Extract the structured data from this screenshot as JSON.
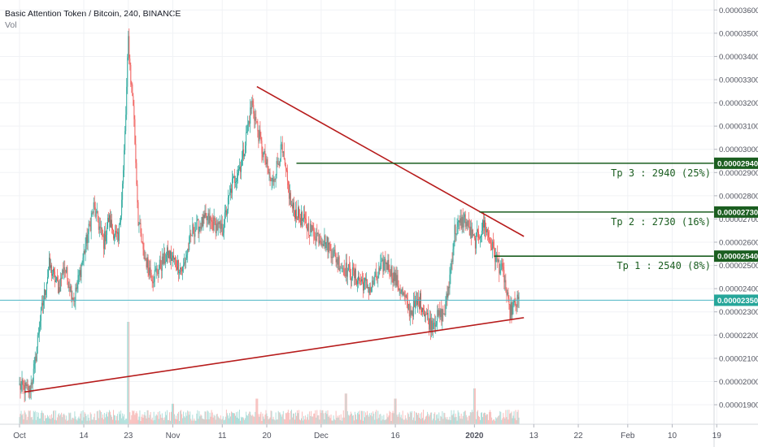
{
  "header": {
    "symbol_line": "Basic Attention Token / Bitcoin, 240, BINANCE",
    "volume_label": "Vol"
  },
  "chart_data": {
    "type": "candlestick",
    "y_axis": {
      "ticks": [
        "0.00001900",
        "0.00002000",
        "0.00002100",
        "0.00002200",
        "0.00002300",
        "0.00002400",
        "0.00002500",
        "0.00002600",
        "0.00002700",
        "0.00002800",
        "0.00002900",
        "0.00003000",
        "0.00003100",
        "0.00003200",
        "0.00003300",
        "0.00003400",
        "0.00003500",
        "0.00003600"
      ],
      "tick_values": [
        1900,
        2000,
        2100,
        2200,
        2300,
        2400,
        2500,
        2600,
        2700,
        2800,
        2900,
        3000,
        3100,
        3200,
        3300,
        3400,
        3500,
        3600
      ],
      "position": "right"
    },
    "x_axis": {
      "labels": [
        "Oct",
        "14",
        "23",
        "Nov",
        "11",
        "20",
        "Dec",
        "16",
        "2020",
        "13",
        "22",
        "Feb",
        "10",
        "19"
      ],
      "bold_labels": [
        "2020"
      ]
    },
    "price_path": [
      [
        "Oct 1",
        1980
      ],
      [
        "Oct 3",
        1960
      ],
      [
        "Oct 4",
        2050
      ],
      [
        "Oct 5",
        2250
      ],
      [
        "Oct 7",
        2500
      ],
      [
        "Oct 9",
        2400
      ],
      [
        "Oct 10",
        2500
      ],
      [
        "Oct 12",
        2350
      ],
      [
        "Oct 14",
        2550
      ],
      [
        "Oct 16",
        2750
      ],
      [
        "Oct 18",
        2600
      ],
      [
        "Oct 19",
        2700
      ],
      [
        "Oct 21",
        2600
      ],
      [
        "Oct 22",
        2900
      ],
      [
        "Oct 23",
        3400
      ],
      [
        "Oct 24",
        3200
      ],
      [
        "Oct 25",
        2700
      ],
      [
        "Oct 26",
        2550
      ],
      [
        "Oct 28",
        2450
      ],
      [
        "Oct 31",
        2550
      ],
      [
        "Nov 3",
        2480
      ],
      [
        "Nov 5",
        2650
      ],
      [
        "Nov 8",
        2700
      ],
      [
        "Nov 11",
        2650
      ],
      [
        "Nov 13",
        2850
      ],
      [
        "Nov 15",
        2950
      ],
      [
        "Nov 17",
        3200
      ],
      [
        "Nov 18",
        3100
      ],
      [
        "Nov 19",
        3000
      ],
      [
        "Nov 21",
        2850
      ],
      [
        "Nov 23",
        3000
      ],
      [
        "Nov 25",
        2750
      ],
      [
        "Nov 27",
        2700
      ],
      [
        "Nov 29",
        2650
      ],
      [
        "Dec 2",
        2600
      ],
      [
        "Dec 5",
        2500
      ],
      [
        "Dec 8",
        2450
      ],
      [
        "Dec 11",
        2400
      ],
      [
        "Dec 14",
        2520
      ],
      [
        "Dec 17",
        2400
      ],
      [
        "Dec 19",
        2300
      ],
      [
        "Dec 21",
        2350
      ],
      [
        "Dec 23",
        2250
      ],
      [
        "Dec 26",
        2300
      ],
      [
        "Dec 27",
        2450
      ],
      [
        "Dec 28",
        2650
      ],
      [
        "Dec 30",
        2700
      ],
      [
        "Jan 1",
        2600
      ],
      [
        "Jan 3",
        2680
      ],
      [
        "Jan 5",
        2550
      ],
      [
        "Jan 7",
        2450
      ],
      [
        "Jan 8",
        2300
      ],
      [
        "Jan 10",
        2350
      ]
    ],
    "volume_spikes": [
      [
        "Oct 23",
        1.0
      ],
      [
        "Nov 1",
        0.2
      ],
      [
        "Nov 18",
        0.25
      ],
      [
        "Dec 6",
        0.3
      ],
      [
        "Dec 16",
        0.25
      ],
      [
        "Jan 1",
        0.35
      ]
    ],
    "trendlines": [
      {
        "name": "descending-resistance",
        "from": [
          "Nov 18",
          3270
        ],
        "to": [
          "Jan 11",
          2625
        ],
        "color": "#b71c1c"
      },
      {
        "name": "ascending-support",
        "from": [
          "Oct 2",
          1955
        ],
        "to": [
          "Jan 11",
          2275
        ],
        "color": "#b71c1c"
      }
    ],
    "targets": [
      {
        "label": "Tp 3 : 2940 (25%)",
        "value": 2940,
        "tag": "0.00002940",
        "start": "Nov 26"
      },
      {
        "label": "Tp 2 : 2730 (16%)",
        "value": 2730,
        "tag": "0.00002730",
        "start": "Jan 2"
      },
      {
        "label": "Tp 1 : 2540 (8%)",
        "value": 2540,
        "tag": "0.00002540",
        "start": "Jan 5"
      }
    ],
    "current_price": {
      "value": 2350,
      "tag": "0.00002350"
    },
    "colors": {
      "up": "#26a69a",
      "down": "#ef5350",
      "target": "#1b5e20",
      "trend": "#b71c1c",
      "current": "#4db6c4"
    }
  }
}
